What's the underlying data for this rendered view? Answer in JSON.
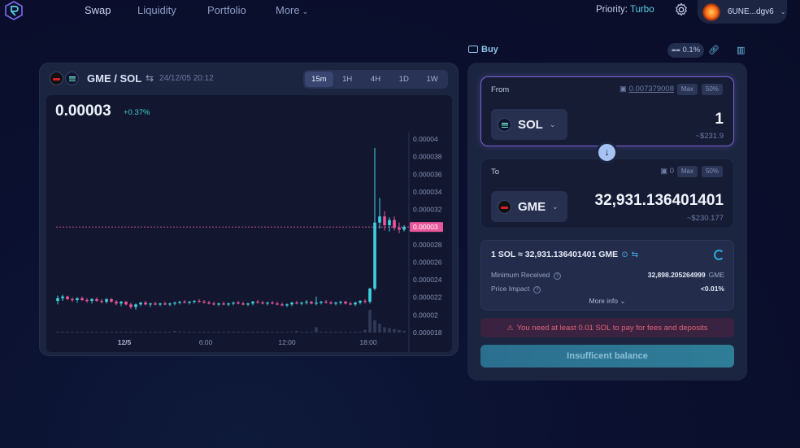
{
  "nav": {
    "links": [
      "Swap",
      "Liquidity",
      "Portfolio",
      "More"
    ],
    "priority_label": "Priority:",
    "priority_value": "Turbo",
    "wallet_address": "6UNE...dgv6"
  },
  "chart_panel": {
    "pair": "GME / SOL",
    "datetime": "24/12/05 20:12",
    "timeframes": [
      "15m",
      "1H",
      "4H",
      "1D",
      "1W"
    ],
    "active_timeframe": "15m",
    "price": "0.00003",
    "change": "+0.37%"
  },
  "chart_data": {
    "type": "candlestick",
    "x_tick_labels": [
      "12/5",
      "6:00",
      "12:00",
      "18:00"
    ],
    "y_tick_labels": [
      "0.00004",
      "0.000038",
      "0.000036",
      "0.000034",
      "0.000032",
      "0.00003",
      "0.000028",
      "0.000026",
      "0.000024",
      "0.000022",
      "0.00002",
      "0.000018"
    ],
    "ylim": [
      1.8e-05,
      4e-05
    ],
    "current_price_label": "0.00003",
    "current_price": 3e-05,
    "up_color": "#3fd0e0",
    "down_color": "#e8579b",
    "ohlc": [
      [
        2.16e-05,
        2.22e-05,
        2.12e-05,
        2.19e-05
      ],
      [
        2.19e-05,
        2.23e-05,
        2.16e-05,
        2.21e-05
      ],
      [
        2.21e-05,
        2.22e-05,
        2.17e-05,
        2.18e-05
      ],
      [
        2.18e-05,
        2.2e-05,
        2.15e-05,
        2.17e-05
      ],
      [
        2.17e-05,
        2.2e-05,
        2.14e-05,
        2.19e-05
      ],
      [
        2.19e-05,
        2.21e-05,
        2.16e-05,
        2.17e-05
      ],
      [
        2.17e-05,
        2.19e-05,
        2.14e-05,
        2.16e-05
      ],
      [
        2.16e-05,
        2.19e-05,
        2.13e-05,
        2.18e-05
      ],
      [
        2.18e-05,
        2.2e-05,
        2.15e-05,
        2.16e-05
      ],
      [
        2.16e-05,
        2.18e-05,
        2.13e-05,
        2.15e-05
      ],
      [
        2.15e-05,
        2.19e-05,
        2.13e-05,
        2.18e-05
      ],
      [
        2.18e-05,
        2.19e-05,
        2.14e-05,
        2.15e-05
      ],
      [
        2.15e-05,
        2.17e-05,
        2.11e-05,
        2.13e-05
      ],
      [
        2.13e-05,
        2.16e-05,
        2.1e-05,
        2.15e-05
      ],
      [
        2.15e-05,
        2.16e-05,
        2.11e-05,
        2.12e-05
      ],
      [
        2.12e-05,
        2.14e-05,
        2.07e-05,
        2.09e-05
      ],
      [
        2.09e-05,
        2.13e-05,
        2.06e-05,
        2.12e-05
      ],
      [
        2.12e-05,
        2.15e-05,
        2.1e-05,
        2.14e-05
      ],
      [
        2.14e-05,
        2.16e-05,
        2.11e-05,
        2.12e-05
      ],
      [
        2.12e-05,
        2.14e-05,
        2.09e-05,
        2.13e-05
      ],
      [
        2.13e-05,
        2.15e-05,
        2.11e-05,
        2.12e-05
      ],
      [
        2.12e-05,
        2.14e-05,
        2.1e-05,
        2.13e-05
      ],
      [
        2.13e-05,
        2.15e-05,
        2.11e-05,
        2.12e-05
      ],
      [
        2.12e-05,
        2.14e-05,
        2.1e-05,
        2.13e-05
      ],
      [
        2.13e-05,
        2.15e-05,
        2.11e-05,
        2.14e-05
      ],
      [
        2.14e-05,
        2.16e-05,
        2.12e-05,
        2.15e-05
      ],
      [
        2.15e-05,
        2.17e-05,
        2.13e-05,
        2.14e-05
      ],
      [
        2.14e-05,
        2.16e-05,
        2.12e-05,
        2.15e-05
      ],
      [
        2.15e-05,
        2.17e-05,
        2.13e-05,
        2.16e-05
      ],
      [
        2.16e-05,
        2.18e-05,
        2.14e-05,
        2.15e-05
      ],
      [
        2.15e-05,
        2.17e-05,
        2.13e-05,
        2.14e-05
      ],
      [
        2.14e-05,
        2.16e-05,
        2.12e-05,
        2.13e-05
      ],
      [
        2.13e-05,
        2.15e-05,
        2.11e-05,
        2.12e-05
      ],
      [
        2.12e-05,
        2.14e-05,
        2.1e-05,
        2.13e-05
      ],
      [
        2.13e-05,
        2.15e-05,
        2.11e-05,
        2.12e-05
      ],
      [
        2.12e-05,
        2.14e-05,
        2.1e-05,
        2.13e-05
      ],
      [
        2.13e-05,
        2.15e-05,
        2.11e-05,
        2.14e-05
      ],
      [
        2.14e-05,
        2.16e-05,
        2.12e-05,
        2.13e-05
      ],
      [
        2.13e-05,
        2.15e-05,
        2.11e-05,
        2.12e-05
      ],
      [
        2.12e-05,
        2.14e-05,
        2.1e-05,
        2.13e-05
      ],
      [
        2.13e-05,
        2.16e-05,
        2.11e-05,
        2.15e-05
      ],
      [
        2.15e-05,
        2.17e-05,
        2.13e-05,
        2.14e-05
      ],
      [
        2.14e-05,
        2.16e-05,
        2.12e-05,
        2.13e-05
      ],
      [
        2.13e-05,
        2.15e-05,
        2.11e-05,
        2.14e-05
      ],
      [
        2.14e-05,
        2.16e-05,
        2.12e-05,
        2.13e-05
      ],
      [
        2.13e-05,
        2.15e-05,
        2.11e-05,
        2.12e-05
      ],
      [
        2.12e-05,
        2.14e-05,
        2.1e-05,
        2.11e-05
      ],
      [
        2.11e-05,
        2.13e-05,
        2.09e-05,
        2.12e-05
      ],
      [
        2.12e-05,
        2.15e-05,
        2.1e-05,
        2.14e-05
      ],
      [
        2.14e-05,
        2.16e-05,
        2.12e-05,
        2.13e-05
      ],
      [
        2.13e-05,
        2.15e-05,
        2.11e-05,
        2.14e-05
      ],
      [
        2.14e-05,
        2.17e-05,
        2.12e-05,
        2.15e-05
      ],
      [
        2.15e-05,
        2.16e-05,
        2.12e-05,
        2.13e-05
      ],
      [
        2.13e-05,
        2.21e-05,
        2.11e-05,
        2.14e-05
      ],
      [
        2.14e-05,
        2.16e-05,
        2.12e-05,
        2.15e-05
      ],
      [
        2.15e-05,
        2.17e-05,
        2.13e-05,
        2.14e-05
      ],
      [
        2.14e-05,
        2.16e-05,
        2.12e-05,
        2.13e-05
      ],
      [
        2.13e-05,
        2.15e-05,
        2.11e-05,
        2.14e-05
      ],
      [
        2.14e-05,
        2.16e-05,
        2.12e-05,
        2.15e-05
      ],
      [
        2.15e-05,
        2.16e-05,
        2.12e-05,
        2.13e-05
      ],
      [
        2.13e-05,
        2.15e-05,
        2.11e-05,
        2.12e-05
      ],
      [
        2.12e-05,
        2.15e-05,
        2.1e-05,
        2.14e-05
      ],
      [
        2.14e-05,
        2.17e-05,
        2.12e-05,
        2.16e-05
      ],
      [
        2.16e-05,
        2.18e-05,
        2.13e-05,
        2.15e-05
      ],
      [
        2.15e-05,
        2.31e-05,
        2.13e-05,
        2.3e-05
      ],
      [
        2.3e-05,
        3.9e-05,
        2.28e-05,
        3.05e-05
      ],
      [
        3.05e-05,
        3.33e-05,
        2.98e-05,
        3.12e-05
      ],
      [
        3.12e-05,
        3.18e-05,
        2.96e-05,
        3.02e-05
      ],
      [
        3.02e-05,
        3.11e-05,
        2.95e-05,
        3.08e-05
      ],
      [
        3.08e-05,
        3.12e-05,
        2.96e-05,
        2.99e-05
      ],
      [
        2.99e-05,
        3.05e-05,
        2.93e-05,
        2.97e-05
      ],
      [
        2.97e-05,
        3.02e-05,
        2.95e-05,
        3e-05
      ]
    ],
    "volume": [
      1,
      1,
      1,
      1,
      1,
      1,
      1,
      1,
      1,
      1,
      1,
      1,
      1,
      1,
      1,
      1,
      1,
      1,
      1,
      1,
      1,
      1,
      1,
      1,
      2,
      1,
      1,
      1,
      1,
      1,
      1,
      1,
      1,
      1,
      1,
      1,
      1,
      1,
      1,
      1,
      1,
      1,
      1,
      1,
      1,
      1,
      1,
      1,
      1,
      2,
      1,
      1,
      1,
      6,
      1,
      1,
      1,
      1,
      1,
      1,
      1,
      1,
      1,
      3,
      26,
      14,
      10,
      6,
      5,
      4,
      3,
      2
    ]
  },
  "swap": {
    "buy_label": "Buy",
    "slippage": "0.1%",
    "from_label": "From",
    "from_balance": "0.007379008",
    "max_label": "Max",
    "half_label": "50%",
    "from_token": "SOL",
    "from_amount": "1",
    "from_usd": "~$231.9",
    "to_label": "To",
    "to_balance": "0",
    "to_token": "GME",
    "to_amount": "32,931.136401401",
    "to_usd": "~$230.177",
    "rate": "1 SOL ≈ 32,931.136401401 GME",
    "min_received_label": "Minimum Received",
    "min_received_value": "32,898.205264999",
    "min_received_unit": "GME",
    "price_impact_label": "Price Impact",
    "price_impact_value": "<0.01%",
    "more_info": "More info",
    "warning": "You need at least 0.01 SOL to pay for fees and deposits",
    "action_button": "Insufficent balance"
  },
  "colors": {
    "accent": "#5ad1e6",
    "warning": "#e0637a",
    "from_border": "#7b61d6"
  }
}
